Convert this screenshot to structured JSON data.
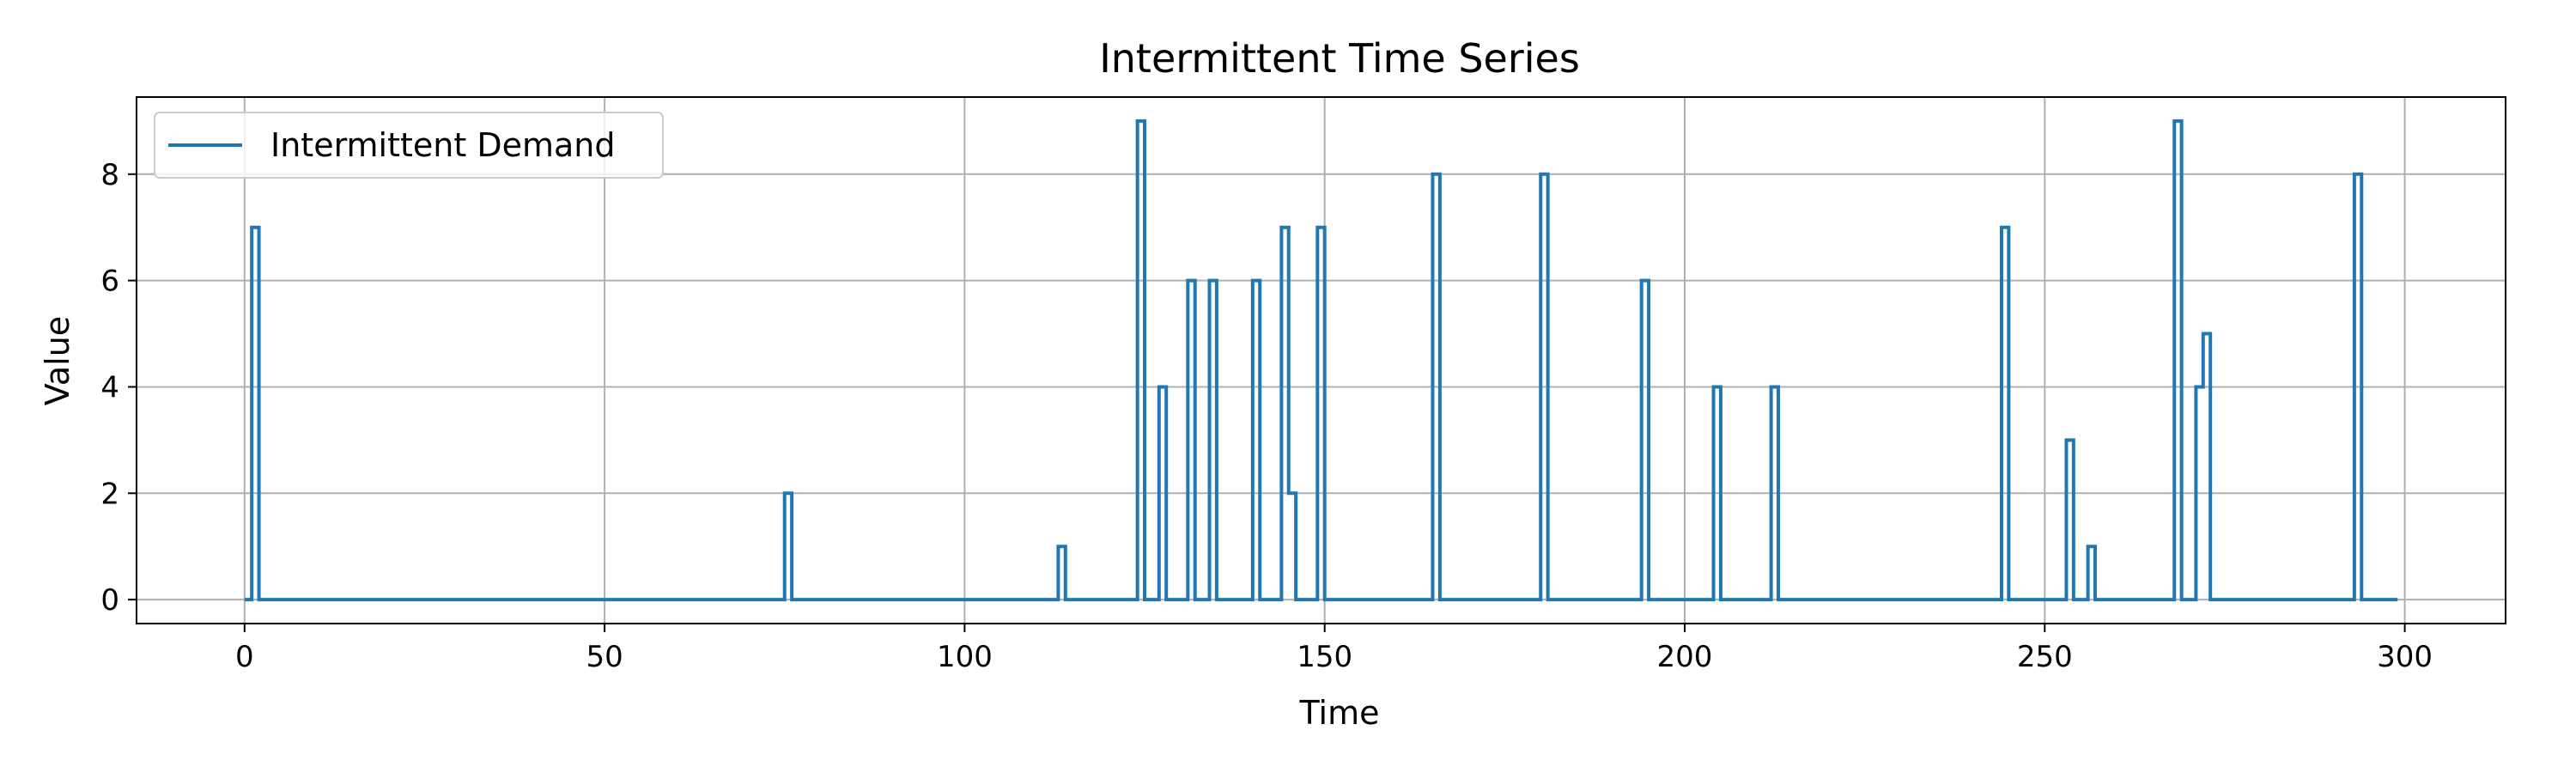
{
  "chart_data": {
    "type": "line",
    "drawstyle": "steps-post",
    "title": "Intermittent Time Series",
    "xlabel": "Time",
    "ylabel": "Value",
    "xlim": [
      -15,
      314
    ],
    "ylim": [
      -0.45,
      9.45
    ],
    "xticks": [
      0,
      50,
      100,
      150,
      200,
      250,
      300
    ],
    "yticks": [
      0,
      2,
      4,
      6,
      8
    ],
    "grid": true,
    "legend_position": "top-left",
    "series": [
      {
        "name": "Intermittent Demand",
        "color": "#1f77b4",
        "x_range": [
          0,
          299
        ],
        "nonzero": [
          [
            1,
            7
          ],
          [
            75,
            2
          ],
          [
            113,
            1
          ],
          [
            124,
            9
          ],
          [
            127,
            4
          ],
          [
            131,
            6
          ],
          [
            134,
            6
          ],
          [
            140,
            6
          ],
          [
            144,
            7
          ],
          [
            145,
            2
          ],
          [
            149,
            7
          ],
          [
            165,
            8
          ],
          [
            180,
            8
          ],
          [
            194,
            6
          ],
          [
            204,
            4
          ],
          [
            212,
            4
          ],
          [
            244,
            7
          ],
          [
            253,
            3
          ],
          [
            256,
            1
          ],
          [
            268,
            9
          ],
          [
            271,
            4
          ],
          [
            272,
            5
          ],
          [
            293,
            8
          ]
        ]
      }
    ]
  }
}
